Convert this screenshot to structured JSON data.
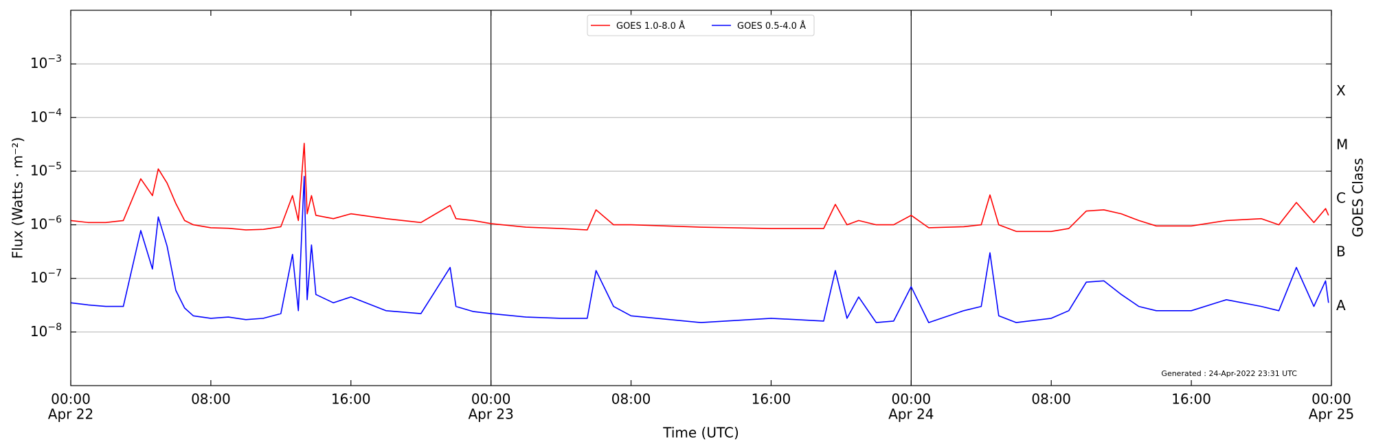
{
  "chart_data": {
    "type": "line",
    "title": "",
    "xlabel": "Time (UTC)",
    "ylabel": "Flux (Watts · m⁻²)",
    "right_ylabel": "GOES Class",
    "x_ticks": [
      {
        "value": "2022-04-22T00:00",
        "line1": "00:00",
        "line2": "Apr 22"
      },
      {
        "value": "2022-04-22T08:00",
        "line1": "08:00",
        "line2": ""
      },
      {
        "value": "2022-04-22T16:00",
        "line1": "16:00",
        "line2": ""
      },
      {
        "value": "2022-04-23T00:00",
        "line1": "00:00",
        "line2": "Apr 23"
      },
      {
        "value": "2022-04-23T08:00",
        "line1": "08:00",
        "line2": ""
      },
      {
        "value": "2022-04-23T16:00",
        "line1": "16:00",
        "line2": ""
      },
      {
        "value": "2022-04-24T00:00",
        "line1": "00:00",
        "line2": "Apr 24"
      },
      {
        "value": "2022-04-24T08:00",
        "line1": "08:00",
        "line2": ""
      },
      {
        "value": "2022-04-24T16:00",
        "line1": "16:00",
        "line2": ""
      },
      {
        "value": "2022-04-25T00:00",
        "line1": "00:00",
        "line2": "Apr 25"
      }
    ],
    "y_ticks": [
      {
        "value": 0.001,
        "base": "10",
        "exp": "−3"
      },
      {
        "value": 0.0001,
        "base": "10",
        "exp": "−4"
      },
      {
        "value": 1e-05,
        "base": "10",
        "exp": "−5"
      },
      {
        "value": 1e-06,
        "base": "10",
        "exp": "−6"
      },
      {
        "value": 1e-07,
        "base": "10",
        "exp": "−7"
      },
      {
        "value": 1e-08,
        "base": "10",
        "exp": "−8"
      }
    ],
    "goes_classes": [
      {
        "label": "X",
        "value": 0.000316
      },
      {
        "label": "M",
        "value": 3.16e-05
      },
      {
        "label": "C",
        "value": 3.16e-06
      },
      {
        "label": "B",
        "value": 3.16e-07
      },
      {
        "label": "A",
        "value": 3.16e-08
      }
    ],
    "xlim": [
      "2022-04-22T00:00",
      "2022-04-25T00:00"
    ],
    "ylim": [
      1e-09,
      0.01
    ],
    "yscale": "log",
    "grid": "horizontal",
    "legend_placement": "top-center",
    "day_separators": [
      "2022-04-23T00:00",
      "2022-04-24T00:00"
    ],
    "generated_note": "Generated : 24-Apr-2022 23:31 UTC",
    "series": [
      {
        "name": "GOES 1.0-8.0 Å",
        "color": "#ff0000",
        "x": [
          "2022-04-22T00:00",
          "2022-04-22T01:00",
          "2022-04-22T02:00",
          "2022-04-22T03:00",
          "2022-04-22T04:00",
          "2022-04-22T04:40",
          "2022-04-22T05:00",
          "2022-04-22T05:30",
          "2022-04-22T06:00",
          "2022-04-22T06:30",
          "2022-04-22T07:00",
          "2022-04-22T08:00",
          "2022-04-22T09:00",
          "2022-04-22T10:00",
          "2022-04-22T11:00",
          "2022-04-22T12:00",
          "2022-04-22T12:40",
          "2022-04-22T13:00",
          "2022-04-22T13:20",
          "2022-04-22T13:30",
          "2022-04-22T13:45",
          "2022-04-22T14:00",
          "2022-04-22T15:00",
          "2022-04-22T16:00",
          "2022-04-22T18:00",
          "2022-04-22T20:00",
          "2022-04-22T21:40",
          "2022-04-22T22:00",
          "2022-04-22T23:00",
          "2022-04-23T00:00",
          "2022-04-23T02:00",
          "2022-04-23T04:00",
          "2022-04-23T05:30",
          "2022-04-23T06:00",
          "2022-04-23T07:00",
          "2022-04-23T08:00",
          "2022-04-23T12:00",
          "2022-04-23T16:00",
          "2022-04-23T19:00",
          "2022-04-23T19:40",
          "2022-04-23T20:20",
          "2022-04-23T21:00",
          "2022-04-23T22:00",
          "2022-04-23T23:00",
          "2022-04-24T00:00",
          "2022-04-24T01:00",
          "2022-04-24T03:00",
          "2022-04-24T04:00",
          "2022-04-24T04:30",
          "2022-04-24T05:00",
          "2022-04-24T06:00",
          "2022-04-24T08:00",
          "2022-04-24T09:00",
          "2022-04-24T10:00",
          "2022-04-24T11:00",
          "2022-04-24T12:00",
          "2022-04-24T13:00",
          "2022-04-24T14:00",
          "2022-04-24T16:00",
          "2022-04-24T18:00",
          "2022-04-24T20:00",
          "2022-04-24T21:00",
          "2022-04-24T22:00",
          "2022-04-24T23:00",
          "2022-04-24T23:40",
          "2022-04-24T23:50"
        ],
        "values": [
          1.2e-06,
          1.1e-06,
          1.1e-06,
          1.2e-06,
          7.2e-06,
          3.5e-06,
          1.1e-05,
          6e-06,
          2.5e-06,
          1.2e-06,
          1e-06,
          8.8e-07,
          8.6e-07,
          8e-07,
          8.2e-07,
          9.2e-07,
          3.5e-06,
          1.2e-06,
          3.3e-05,
          1.6e-06,
          3.5e-06,
          1.5e-06,
          1.3e-06,
          1.6e-06,
          1.3e-06,
          1.1e-06,
          2.3e-06,
          1.3e-06,
          1.2e-06,
          1.05e-06,
          9e-07,
          8.5e-07,
          8e-07,
          1.9e-06,
          1e-06,
          1e-06,
          9e-07,
          8.5e-07,
          8.5e-07,
          2.4e-06,
          1e-06,
          1.2e-06,
          1e-06,
          1e-06,
          1.5e-06,
          8.8e-07,
          9.2e-07,
          1e-06,
          3.6e-06,
          1e-06,
          7.5e-07,
          7.5e-07,
          8.5e-07,
          1.8e-06,
          1.9e-06,
          1.6e-06,
          1.2e-06,
          9.5e-07,
          9.5e-07,
          1.2e-06,
          1.3e-06,
          1e-06,
          2.6e-06,
          1.1e-06,
          2e-06,
          1.5e-06
        ]
      },
      {
        "name": "GOES 0.5-4.0 Å",
        "color": "#0000ff",
        "x": [
          "2022-04-22T00:00",
          "2022-04-22T01:00",
          "2022-04-22T02:00",
          "2022-04-22T03:00",
          "2022-04-22T04:00",
          "2022-04-22T04:40",
          "2022-04-22T05:00",
          "2022-04-22T05:30",
          "2022-04-22T06:00",
          "2022-04-22T06:30",
          "2022-04-22T07:00",
          "2022-04-22T08:00",
          "2022-04-22T09:00",
          "2022-04-22T10:00",
          "2022-04-22T11:00",
          "2022-04-22T12:00",
          "2022-04-22T12:40",
          "2022-04-22T13:00",
          "2022-04-22T13:20",
          "2022-04-22T13:30",
          "2022-04-22T13:45",
          "2022-04-22T14:00",
          "2022-04-22T15:00",
          "2022-04-22T16:00",
          "2022-04-22T18:00",
          "2022-04-22T20:00",
          "2022-04-22T21:40",
          "2022-04-22T22:00",
          "2022-04-22T23:00",
          "2022-04-23T00:00",
          "2022-04-23T02:00",
          "2022-04-23T04:00",
          "2022-04-23T05:30",
          "2022-04-23T06:00",
          "2022-04-23T07:00",
          "2022-04-23T08:00",
          "2022-04-23T12:00",
          "2022-04-23T16:00",
          "2022-04-23T19:00",
          "2022-04-23T19:40",
          "2022-04-23T20:20",
          "2022-04-23T21:00",
          "2022-04-23T22:00",
          "2022-04-23T23:00",
          "2022-04-24T00:00",
          "2022-04-24T01:00",
          "2022-04-24T03:00",
          "2022-04-24T04:00",
          "2022-04-24T04:30",
          "2022-04-24T05:00",
          "2022-04-24T06:00",
          "2022-04-24T08:00",
          "2022-04-24T09:00",
          "2022-04-24T10:00",
          "2022-04-24T11:00",
          "2022-04-24T12:00",
          "2022-04-24T13:00",
          "2022-04-24T14:00",
          "2022-04-24T16:00",
          "2022-04-24T18:00",
          "2022-04-24T20:00",
          "2022-04-24T21:00",
          "2022-04-24T22:00",
          "2022-04-24T23:00",
          "2022-04-24T23:40",
          "2022-04-24T23:50"
        ],
        "values": [
          3.5e-08,
          3.2e-08,
          3e-08,
          3e-08,
          7.8e-07,
          1.5e-07,
          1.4e-06,
          4e-07,
          6e-08,
          2.8e-08,
          2e-08,
          1.8e-08,
          1.9e-08,
          1.7e-08,
          1.8e-08,
          2.2e-08,
          2.8e-07,
          2.5e-08,
          8e-06,
          4e-08,
          4.2e-07,
          5e-08,
          3.5e-08,
          4.5e-08,
          2.5e-08,
          2.2e-08,
          1.6e-07,
          3e-08,
          2.4e-08,
          2.2e-08,
          1.9e-08,
          1.8e-08,
          1.8e-08,
          1.4e-07,
          3e-08,
          2e-08,
          1.5e-08,
          1.8e-08,
          1.6e-08,
          1.4e-07,
          1.8e-08,
          4.5e-08,
          1.5e-08,
          1.6e-08,
          7e-08,
          1.5e-08,
          2.5e-08,
          3e-08,
          3e-07,
          2e-08,
          1.5e-08,
          1.8e-08,
          2.5e-08,
          8.5e-08,
          9e-08,
          5e-08,
          3e-08,
          2.5e-08,
          2.5e-08,
          4e-08,
          3e-08,
          2.5e-08,
          1.6e-07,
          3e-08,
          9e-08,
          3.5e-08
        ]
      }
    ]
  }
}
